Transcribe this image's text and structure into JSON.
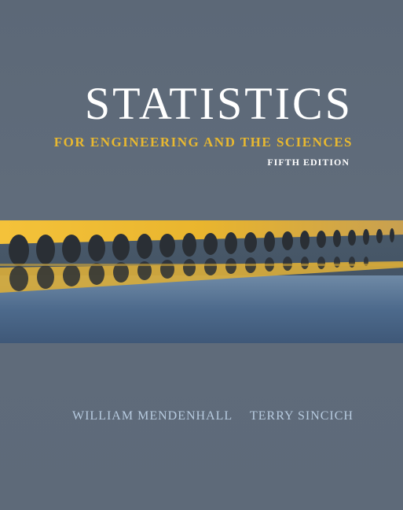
{
  "cover": {
    "title": "STATISTICS",
    "subtitle": "FOR ENGINEERING AND THE SCIENCES",
    "edition": "FIFTH EDITION",
    "authors": [
      "WILLIAM MENDENHALL",
      "TERRY SINCICH"
    ]
  },
  "colors": {
    "background": "#5f6b7a",
    "title": "#ffffff",
    "subtitle": "#e8b830",
    "authors": "#b7cbe0"
  }
}
